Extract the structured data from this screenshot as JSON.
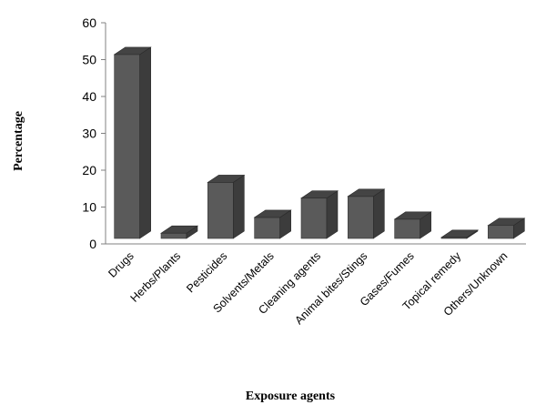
{
  "chart_data": {
    "type": "bar",
    "title": "",
    "xlabel": "Exposure agents",
    "ylabel": "Percentage",
    "ylim": [
      0,
      60
    ],
    "yticks": [
      0,
      10,
      20,
      30,
      40,
      50,
      60
    ],
    "categories": [
      "Drugs",
      "Herbs/Plants",
      "Pesticides",
      "Solvents/Metals",
      "Cleaning agents",
      "Animal bites/Stings",
      "Gases/Fumes",
      "Topical remedy",
      "Others/Unknown"
    ],
    "values": [
      52.5,
      1.5,
      16,
      6,
      11.5,
      12,
      5.5,
      0.3,
      3.7
    ],
    "grid": false,
    "legend": "none",
    "colors": {
      "bar_front": "#5a5a5a",
      "bar_side": "#3c3c3c",
      "bar_top": "#444444",
      "axis": "#808080"
    }
  }
}
